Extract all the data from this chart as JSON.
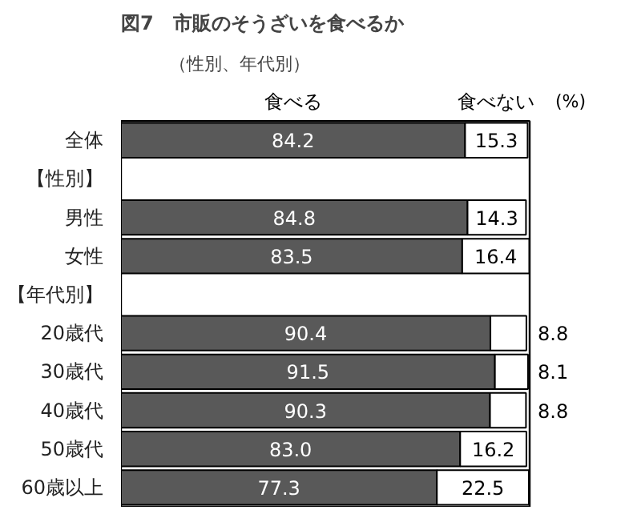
{
  "chart_data": {
    "type": "bar",
    "orientation": "horizontal",
    "stacked": true,
    "title": "図7　市販のそうざいを食べるか",
    "subtitle": "（性別、年代別）",
    "categories": [
      "全体",
      "【性別】",
      "男性",
      "女性",
      "【年代別】",
      "20歳代",
      "30歳代",
      "40歳代",
      "50歳代",
      "60歳以上"
    ],
    "series": [
      {
        "name": "食べる",
        "color": "#595959",
        "values": [
          84.2,
          null,
          84.8,
          83.5,
          null,
          90.4,
          91.5,
          90.3,
          83.0,
          77.3
        ],
        "value_labels": [
          "84.2",
          null,
          "84.8",
          "83.5",
          null,
          "90.4",
          "91.5",
          "90.3",
          "83.0",
          "77.3"
        ]
      },
      {
        "name": "食べない",
        "color": "#ffffff",
        "values": [
          15.3,
          null,
          14.3,
          16.4,
          null,
          8.8,
          8.1,
          8.8,
          16.2,
          22.5
        ],
        "value_labels": [
          "15.3",
          null,
          "14.3",
          "16.4",
          null,
          "8.8",
          "8.1",
          "8.8",
          "16.2",
          "22.5"
        ]
      }
    ],
    "xlim": [
      0,
      100
    ],
    "tick_labels": "y",
    "annotations": [
      "(%)"
    ]
  }
}
